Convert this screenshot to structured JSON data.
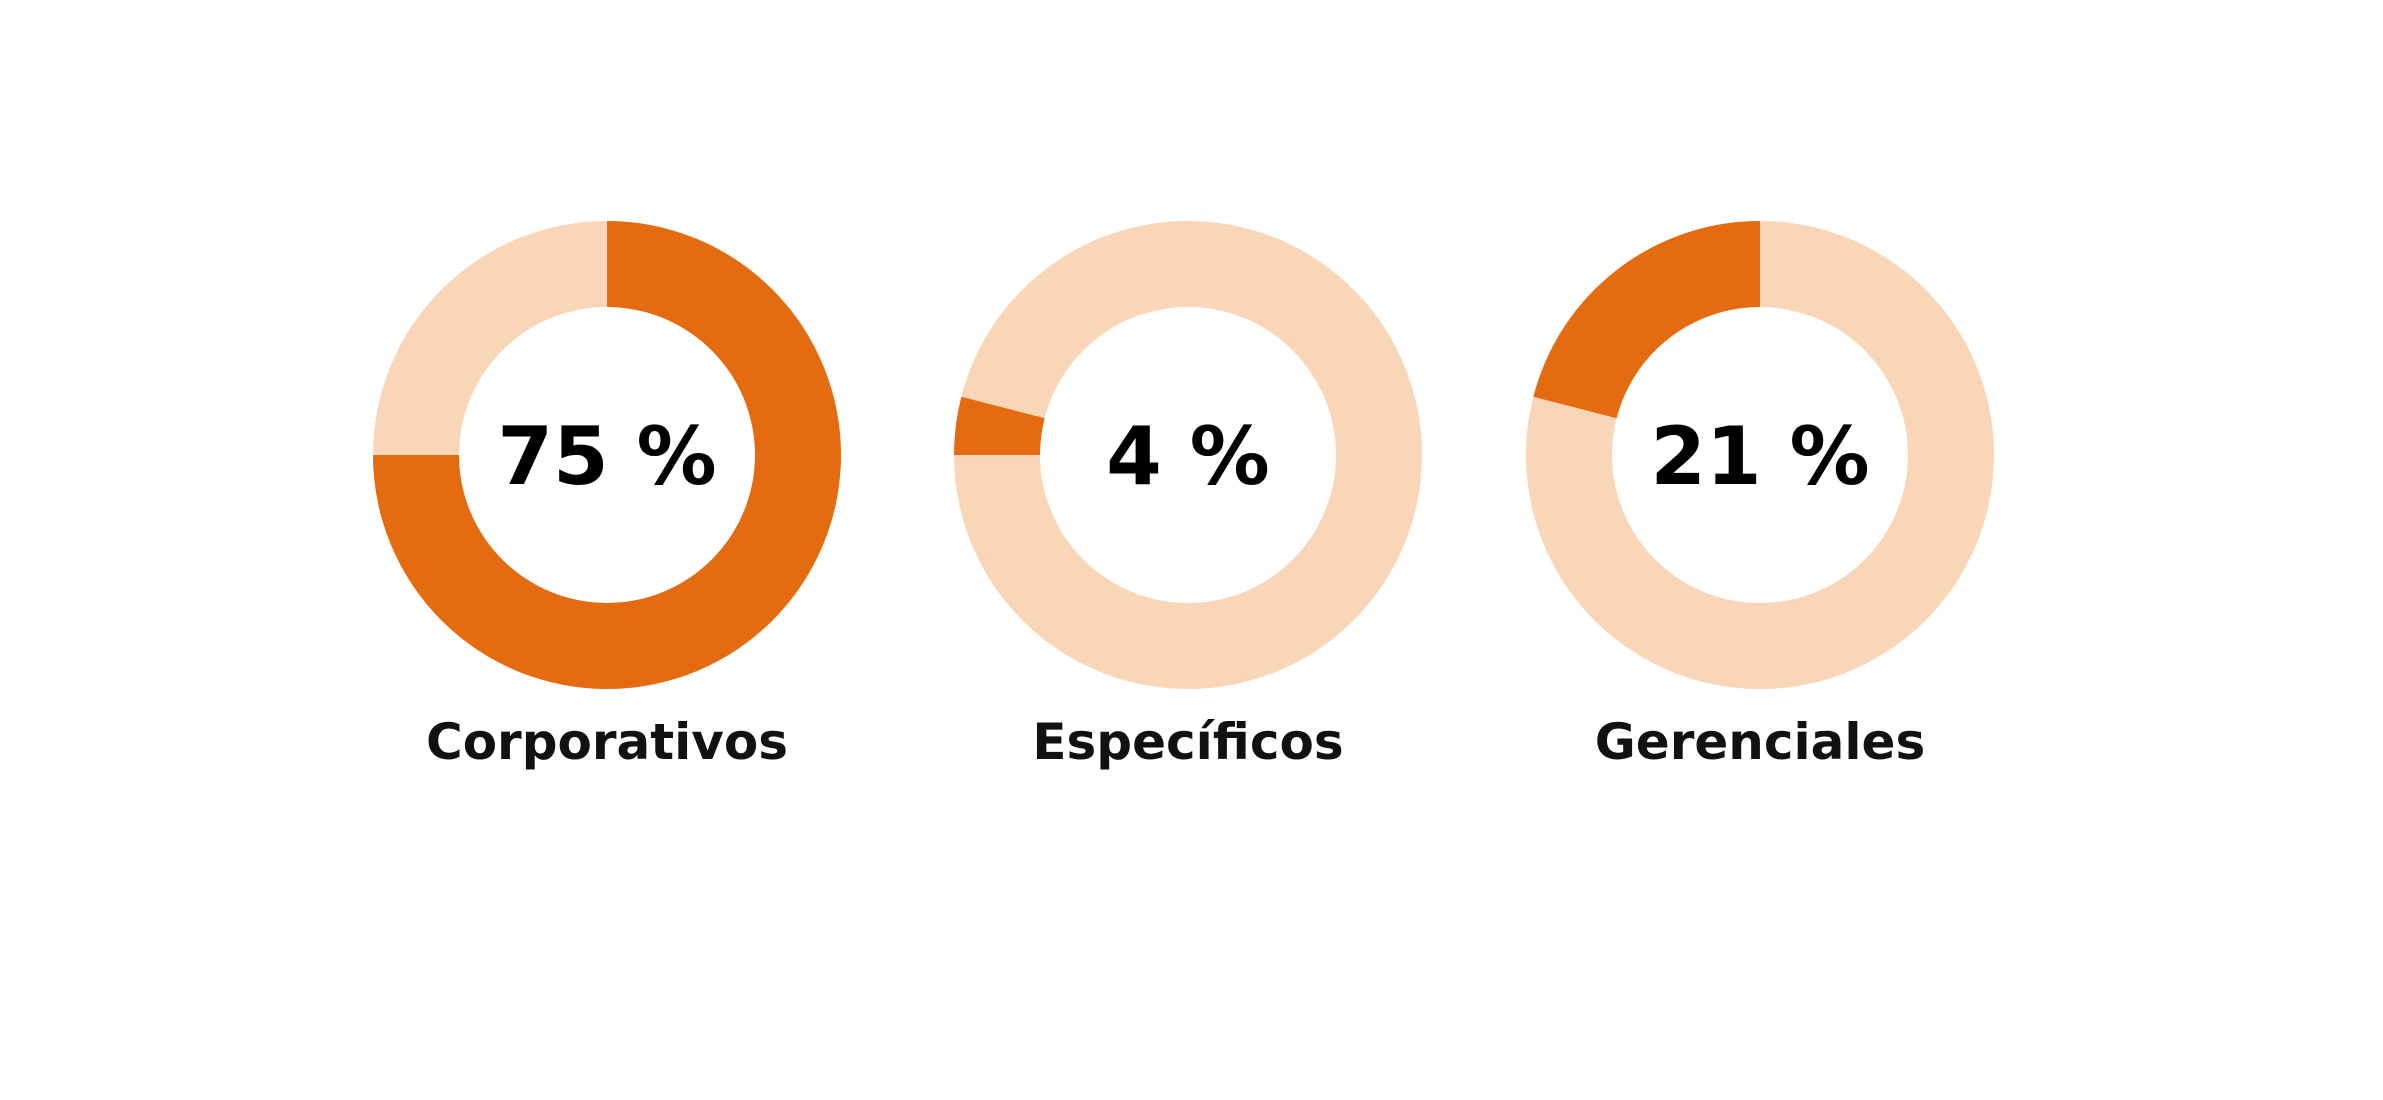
{
  "colors": {
    "accent": "#E46B10",
    "track": "#F9D6B8",
    "text": "#000000",
    "background": "#FFFFFF"
  },
  "chart_data": [
    {
      "type": "pie",
      "category": "Corporativos",
      "value": 75,
      "value_label": "75 %",
      "start_angle_deg": 0,
      "direction": "clockwise"
    },
    {
      "type": "pie",
      "category": "Específicos",
      "value": 4,
      "value_label": "4 %",
      "start_angle_deg": 270,
      "direction": "clockwise"
    },
    {
      "type": "pie",
      "category": "Gerenciales",
      "value": 21,
      "value_label": "21 %",
      "start_angle_deg": 284.4,
      "direction": "clockwise"
    }
  ]
}
